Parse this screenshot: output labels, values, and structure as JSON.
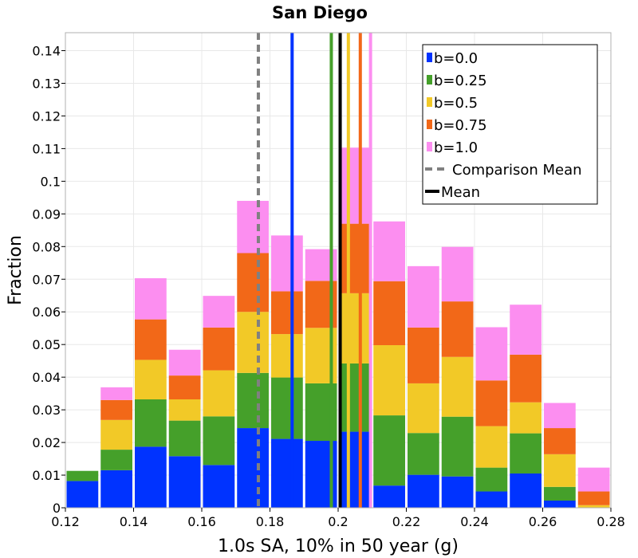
{
  "chart_data": {
    "type": "bar",
    "stacked": true,
    "title": "San Diego",
    "xlabel": "1.0s SA, 10% in 50 year (g)",
    "ylabel": "Fraction",
    "xlim": [
      0.12,
      0.28
    ],
    "ylim": [
      0,
      0.1455
    ],
    "xticks": [
      "0.12",
      "0.14",
      "0.16",
      "0.18",
      "0.2",
      "0.22",
      "0.24",
      "0.26",
      "0.28"
    ],
    "yticks": [
      "0",
      "0.01",
      "0.02",
      "0.03",
      "0.04",
      "0.05",
      "0.06",
      "0.07",
      "0.08",
      "0.09",
      "0.1",
      "0.11",
      "0.12",
      "0.13",
      "0.14"
    ],
    "bin_width": 0.01,
    "bin_starts": [
      0.12,
      0.13,
      0.14,
      0.15,
      0.16,
      0.17,
      0.18,
      0.19,
      0.2,
      0.21,
      0.22,
      0.23,
      0.24,
      0.25,
      0.26,
      0.27
    ],
    "series": [
      {
        "name": "b=0.0",
        "color": "#0033ff",
        "values": [
          0.0082,
          0.0115,
          0.0187,
          0.0158,
          0.0131,
          0.0244,
          0.0211,
          0.0205,
          0.0233,
          0.0068,
          0.0101,
          0.0096,
          0.005,
          0.0105,
          0.0022,
          0.0
        ]
      },
      {
        "name": "b=0.25",
        "color": "#45a02a",
        "values": [
          0.0031,
          0.0063,
          0.0145,
          0.0109,
          0.0149,
          0.0169,
          0.0188,
          0.0176,
          0.0209,
          0.0215,
          0.0128,
          0.0183,
          0.0073,
          0.0123,
          0.0042,
          0.0
        ]
      },
      {
        "name": "b=0.5",
        "color": "#f2c927",
        "values": [
          0.0,
          0.0091,
          0.0121,
          0.0065,
          0.0141,
          0.0187,
          0.0133,
          0.017,
          0.0215,
          0.0215,
          0.0152,
          0.0183,
          0.0127,
          0.0095,
          0.01,
          0.0008
        ]
      },
      {
        "name": "b=0.75",
        "color": "#f26818",
        "values": [
          0.0,
          0.0061,
          0.0124,
          0.0073,
          0.0131,
          0.018,
          0.0131,
          0.0144,
          0.0213,
          0.0196,
          0.0171,
          0.017,
          0.014,
          0.0146,
          0.008,
          0.0042
        ]
      },
      {
        "name": "b=1.0",
        "color": "#fc8ef0",
        "values": [
          0.0,
          0.0039,
          0.0126,
          0.0079,
          0.0097,
          0.016,
          0.0171,
          0.0097,
          0.0233,
          0.0183,
          0.0188,
          0.0167,
          0.0163,
          0.0153,
          0.0077,
          0.0073
        ]
      }
    ],
    "series_means": [
      {
        "name": "b=0.0",
        "x": 0.1865,
        "color": "#0033ff"
      },
      {
        "name": "b=0.25",
        "x": 0.198,
        "color": "#45a02a"
      },
      {
        "name": "b=0.5",
        "x": 0.203,
        "color": "#f2c927"
      },
      {
        "name": "b=0.75",
        "x": 0.2065,
        "color": "#f26818"
      },
      {
        "name": "b=1.0",
        "x": 0.2095,
        "color": "#fc8ef0"
      }
    ],
    "comparison_mean": {
      "label": "Comparison Mean",
      "x": 0.1766,
      "color": "#808080"
    },
    "mean": {
      "label": "Mean",
      "x": 0.2006,
      "color": "#000000"
    },
    "legend": {
      "position": "top-right",
      "entries": [
        "b=0.0",
        "b=0.25",
        "b=0.5",
        "b=0.75",
        "b=1.0",
        "Comparison Mean",
        "Mean"
      ]
    }
  }
}
